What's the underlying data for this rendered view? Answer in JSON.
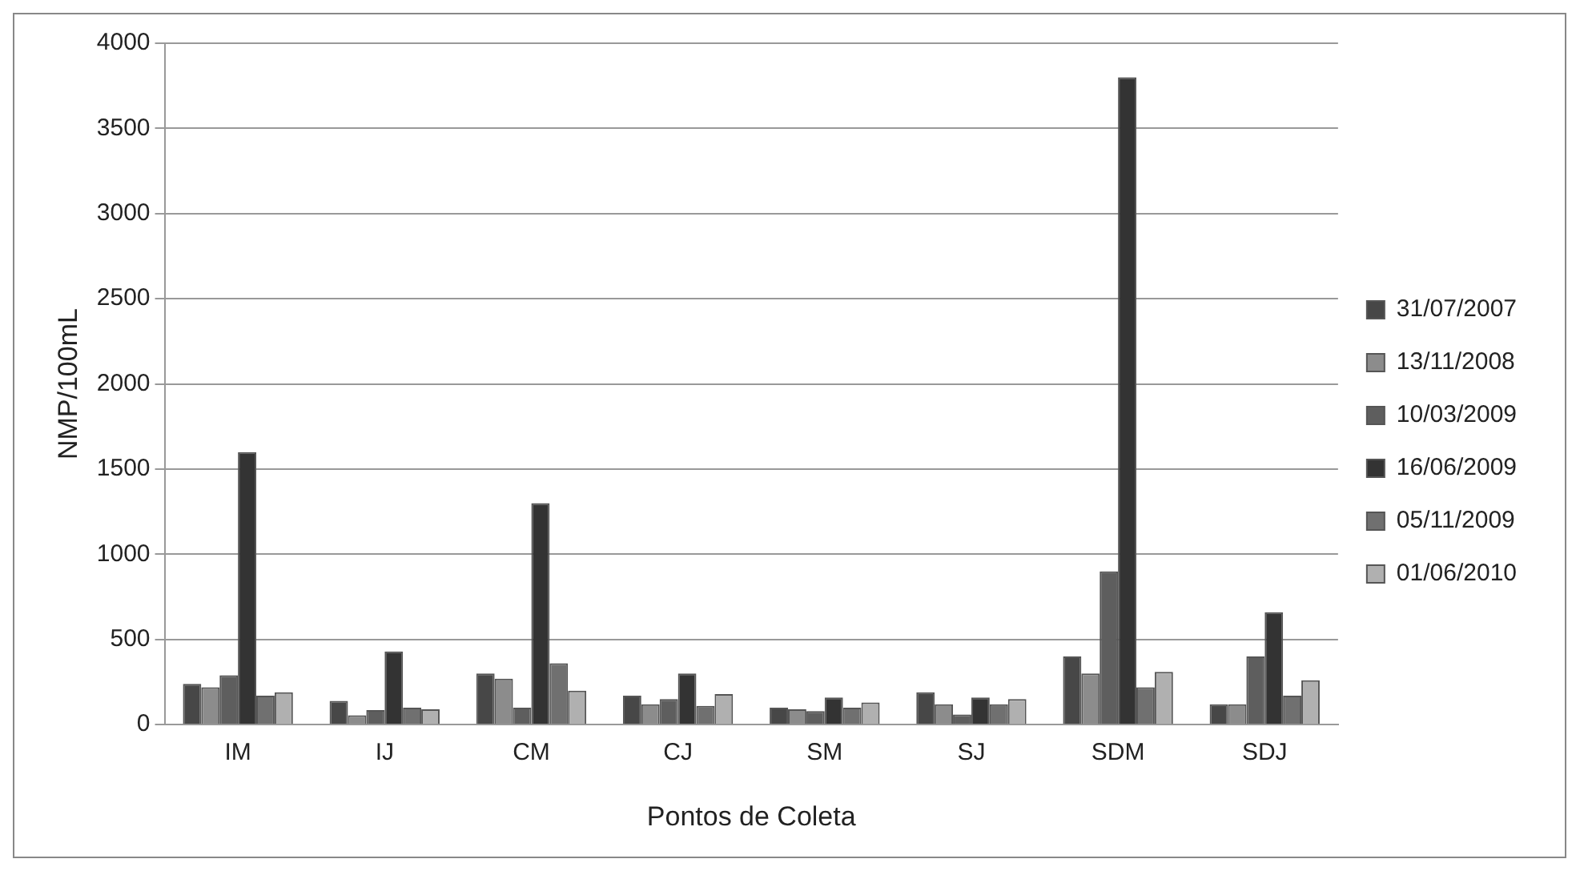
{
  "chart_data": {
    "type": "bar",
    "xlabel": "Pontos de Coleta",
    "ylabel": "NMP/100mL",
    "categories": [
      "IM",
      "IJ",
      "CM",
      "CJ",
      "SM",
      "SJ",
      "SDM",
      "SDJ"
    ],
    "series": [
      {
        "name": "31/07/2007",
        "color": "#474747",
        "values": [
          240,
          140,
          300,
          170,
          100,
          190,
          400,
          120
        ]
      },
      {
        "name": "13/11/2008",
        "color": "#8c8c8c",
        "values": [
          220,
          55,
          270,
          120,
          90,
          120,
          300,
          120
        ]
      },
      {
        "name": "10/03/2009",
        "color": "#5e5e5e",
        "values": [
          290,
          85,
          100,
          150,
          80,
          60,
          900,
          400
        ]
      },
      {
        "name": "16/06/2009",
        "color": "#333333",
        "values": [
          1600,
          430,
          1300,
          300,
          160,
          160,
          3800,
          660
        ]
      },
      {
        "name": "05/11/2009",
        "color": "#707070",
        "values": [
          170,
          100,
          360,
          110,
          100,
          120,
          220,
          170
        ]
      },
      {
        "name": "01/06/2010",
        "color": "#b0b0b0",
        "values": [
          190,
          90,
          200,
          180,
          130,
          150,
          310,
          260
        ]
      }
    ],
    "ylim": [
      0,
      4000
    ],
    "yticks": [
      0,
      500,
      1000,
      1500,
      2000,
      2500,
      3000,
      3500,
      4000
    ],
    "grid": "y",
    "legend": "right"
  }
}
